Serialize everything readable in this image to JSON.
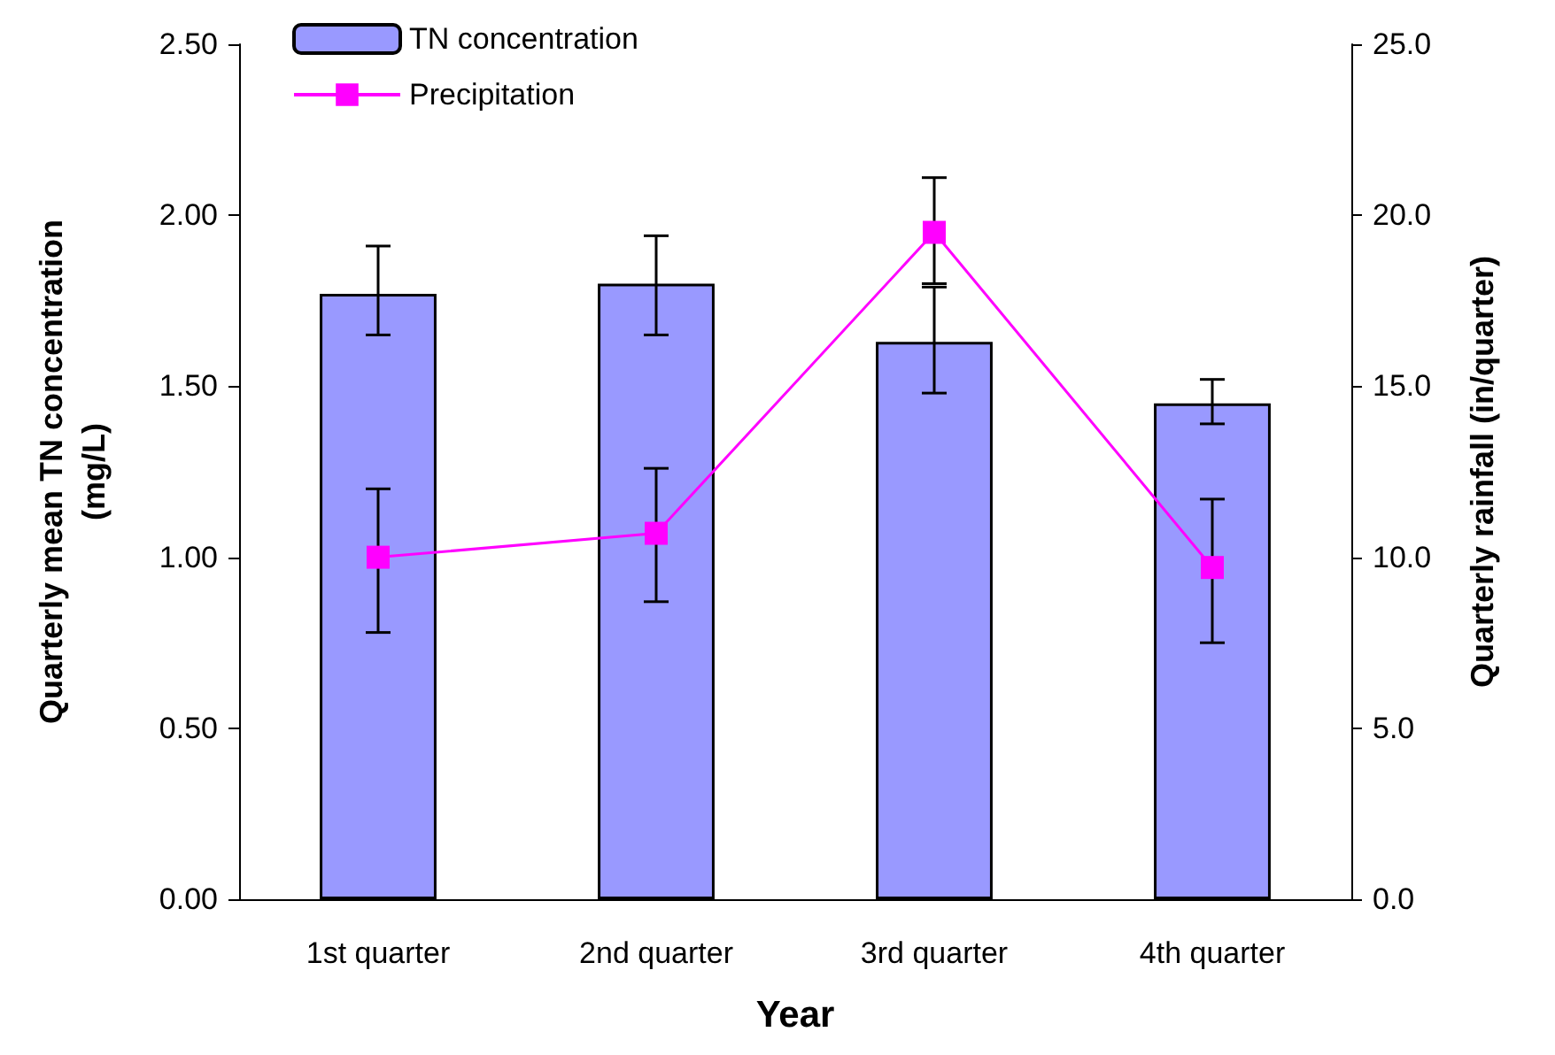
{
  "chart_data": {
    "type": "bar",
    "xlabel": "Year",
    "ylabel": "Quarterly mean TN concentration (mg/L)",
    "y2label": "Quarterly rainfall (in/quarter)",
    "categories": [
      "1st quarter",
      "2nd quarter",
      "3rd quarter",
      "4th quarter"
    ],
    "series": [
      {
        "name": "TN concentration",
        "color": "#9999ff",
        "values": [
          1.77,
          1.8,
          1.63,
          1.45
        ],
        "errors": [
          [
            1.65,
            1.91
          ],
          [
            1.65,
            1.94
          ],
          [
            1.48,
            1.79
          ],
          [
            1.39,
            1.52
          ]
        ]
      },
      {
        "name": "Precipitation",
        "type": "line",
        "axis": "y2",
        "color": "#ff00ff",
        "marker": "square",
        "values": [
          10.0,
          10.7,
          19.5,
          9.7
        ],
        "errors": [
          [
            7.8,
            12.0
          ],
          [
            8.7,
            12.6
          ],
          [
            18.0,
            21.1
          ],
          [
            7.5,
            11.7
          ]
        ]
      }
    ],
    "ylim": [
      0,
      2.5
    ],
    "yticks": [
      {
        "value": 0,
        "label": "0.00"
      },
      {
        "value": 0.5,
        "label": "0.50"
      },
      {
        "value": 1,
        "label": "1.00"
      },
      {
        "value": 1.5,
        "label": "1.50"
      },
      {
        "value": 2,
        "label": "2.00"
      },
      {
        "value": 2.5,
        "label": "2.50"
      }
    ],
    "y2lim": [
      0,
      25
    ],
    "y2ticks": [
      {
        "value": 0,
        "label": "0.0"
      },
      {
        "value": 5,
        "label": "5.0"
      },
      {
        "value": 10,
        "label": "10.0"
      },
      {
        "value": 15,
        "label": "15.0"
      },
      {
        "value": 20,
        "label": "20.0"
      },
      {
        "value": 25,
        "label": "25.0"
      }
    ],
    "grid": false,
    "legend": "top left"
  }
}
